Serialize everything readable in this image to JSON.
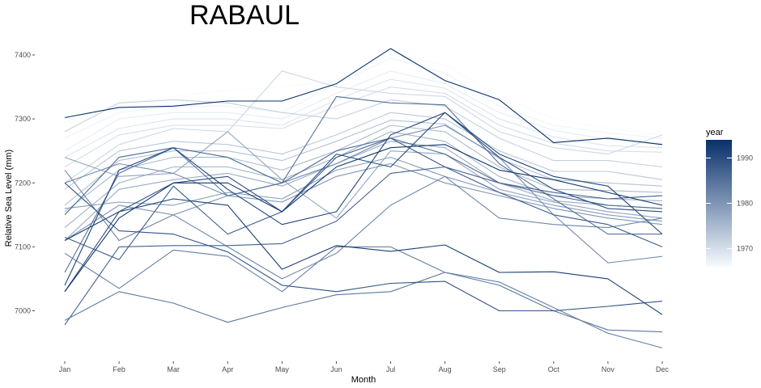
{
  "chart_data": {
    "type": "line",
    "title": "RABAUL",
    "xlabel": "Month",
    "ylabel": "Relative Sea Level (mm)",
    "categories": [
      "Jan",
      "Feb",
      "Mar",
      "Apr",
      "May",
      "Jun",
      "Jul",
      "Aug",
      "Sep",
      "Oct",
      "Nov",
      "Dec"
    ],
    "ylim": [
      6943,
      7410
    ],
    "yticks": [
      7000,
      7100,
      7200,
      7300,
      7400
    ],
    "grid": false,
    "legend": {
      "title": "year",
      "position": "right",
      "range": [
        1966,
        1994
      ],
      "ticks": [
        1970,
        1980,
        1990
      ],
      "color_low": "#f7fbff",
      "color_high": "#08306b"
    },
    "series": [
      {
        "year": 1966,
        "values": [
          7295,
          7325,
          7335,
          7345,
          7350,
          7360,
          7400,
          7385,
          7335,
          7300,
          7285,
          7275
        ]
      },
      {
        "year": 1967,
        "values": [
          7270,
          7310,
          7320,
          7320,
          7310,
          7355,
          7395,
          7372,
          7320,
          7290,
          7278,
          7270
        ]
      },
      {
        "year": 1968,
        "values": [
          7250,
          7300,
          7310,
          7310,
          7300,
          7340,
          7375,
          7355,
          7310,
          7282,
          7268,
          7262
        ]
      },
      {
        "year": 1969,
        "values": [
          7240,
          7285,
          7300,
          7300,
          7290,
          7330,
          7362,
          7348,
          7300,
          7272,
          7258,
          7255
        ]
      },
      {
        "year": 1970,
        "values": [
          7225,
          7275,
          7290,
          7290,
          7285,
          7320,
          7350,
          7340,
          7290,
          7262,
          7250,
          7248
        ]
      },
      {
        "year": 1971,
        "values": [
          7200,
          7260,
          7285,
          7280,
          7375,
          7350,
          7340,
          7335,
          7280,
          7255,
          7245,
          7275
        ]
      },
      {
        "year": 1972,
        "values": [
          7280,
          7325,
          7330,
          7325,
          7310,
          7300,
          7330,
          7320,
          7270,
          7235,
          7235,
          7225
        ]
      },
      {
        "year": 1973,
        "values": [
          7190,
          7250,
          7265,
          7260,
          7245,
          7275,
          7310,
          7300,
          7250,
          7218,
          7218,
          7205
        ]
      },
      {
        "year": 1974,
        "values": [
          7165,
          7235,
          7250,
          7250,
          7235,
          7265,
          7298,
          7292,
          7238,
          7205,
          7200,
          7195
        ]
      },
      {
        "year": 1975,
        "values": [
          7155,
          7220,
          7240,
          7240,
          7220,
          7250,
          7290,
          7280,
          7225,
          7190,
          7188,
          7185
        ]
      },
      {
        "year": 1976,
        "values": [
          7130,
          7200,
          7225,
          7225,
          7205,
          7240,
          7280,
          7265,
          7210,
          7180,
          7175,
          7172
        ]
      },
      {
        "year": 1977,
        "values": [
          7110,
          7190,
          7205,
          7215,
          7195,
          7230,
          7265,
          7255,
          7200,
          7172,
          7165,
          7160
        ]
      },
      {
        "year": 1978,
        "values": [
          7240,
          7210,
          7215,
          7280,
          7205,
          7145,
          7250,
          7245,
          7190,
          7170,
          7155,
          7145
        ]
      },
      {
        "year": 1979,
        "values": [
          7160,
          7170,
          7165,
          7185,
          7175,
          7220,
          7240,
          7210,
          7185,
          7165,
          7150,
          7140
        ]
      },
      {
        "year": 1980,
        "values": [
          7110,
          7165,
          7150,
          7180,
          7170,
          7210,
          7230,
          7200,
          7180,
          7160,
          7145,
          7135
        ]
      },
      {
        "year": 1981,
        "values": [
          7200,
          7230,
          7215,
          7180,
          7200,
          7230,
          7270,
          7290,
          7240,
          7150,
          7075,
          7085
        ]
      },
      {
        "year": 1982,
        "values": [
          7220,
          7110,
          7150,
          7100,
          7050,
          7090,
          7165,
          7210,
          7145,
          7135,
          7130,
          7145
        ]
      },
      {
        "year": 1983,
        "values": [
          7090,
          7035,
          7095,
          7085,
          7030,
          7100,
          7100,
          7060,
          7045,
          7005,
          6965,
          6942
        ]
      },
      {
        "year": 1984,
        "values": [
          6985,
          7030,
          7012,
          6982,
          7005,
          7025,
          7030,
          7060,
          7040,
          7000,
          6970,
          6967
        ]
      },
      {
        "year": 1985,
        "values": [
          7060,
          7215,
          7255,
          7180,
          7200,
          7335,
          7325,
          7322,
          7230,
          7175,
          7120,
          7120
        ]
      },
      {
        "year": 1986,
        "values": [
          7150,
          7240,
          7255,
          7240,
          7200,
          7250,
          7270,
          7245,
          7200,
          7180,
          7165,
          7160
        ]
      },
      {
        "year": 1987,
        "values": [
          6978,
          7100,
          7102,
          7102,
          7105,
          7140,
          7215,
          7225,
          7200,
          7185,
          7175,
          7180
        ]
      },
      {
        "year": 1988,
        "values": [
          7115,
          7080,
          7195,
          7120,
          7155,
          7240,
          7270,
          7225,
          7185,
          7150,
          7135,
          7100
        ]
      },
      {
        "year": 1989,
        "values": [
          7200,
          7125,
          7120,
          7092,
          7040,
          7030,
          7043,
          7046,
          7000,
          7000,
          7007,
          7015
        ]
      },
      {
        "year": 1990,
        "values": [
          7030,
          7155,
          7200,
          7210,
          7155,
          7245,
          7225,
          7310,
          7240,
          7190,
          7160,
          7155
        ]
      },
      {
        "year": 1991,
        "values": [
          7040,
          7220,
          7255,
          7190,
          7135,
          7155,
          7275,
          7310,
          7245,
          7210,
          7195,
          7120
        ]
      },
      {
        "year": 1992,
        "values": [
          7110,
          7155,
          7175,
          7165,
          7065,
          7102,
          7093,
          7103,
          7060,
          7061,
          7050,
          6994
        ]
      },
      {
        "year": 1993,
        "values": [
          7030,
          7145,
          7200,
          7200,
          7155,
          7225,
          7255,
          7260,
          7220,
          7205,
          7185,
          7165
        ]
      },
      {
        "year": 1994,
        "values": [
          7302,
          7318,
          7320,
          7328,
          7328,
          7355,
          7410,
          7360,
          7330,
          7263,
          7270,
          7260
        ]
      }
    ]
  }
}
